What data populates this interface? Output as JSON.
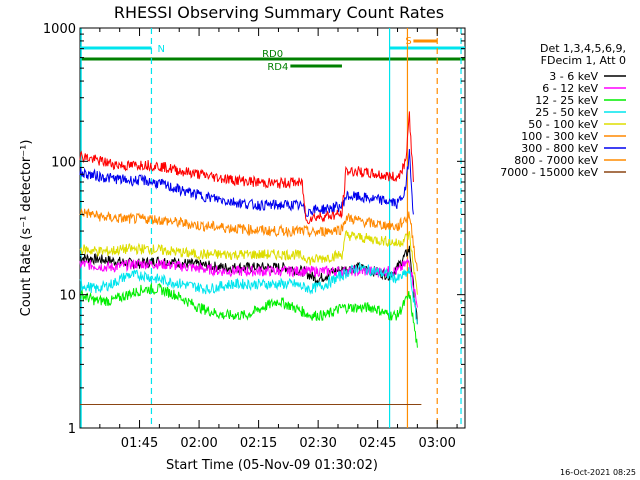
{
  "chart_data": {
    "type": "line",
    "title": "RHESSI Observing Summary Count Rates",
    "xlabel": "Start Time (05-Nov-09 01:30:02)",
    "ylabel": "Count Rate (s⁻¹ detector⁻¹)",
    "footer": "16-Oct-2021 08:25",
    "y_scale": "log",
    "ylim": [
      1,
      1000
    ],
    "y_ticks": [
      {
        "value": 1,
        "label": "1"
      },
      {
        "value": 10,
        "label": "10"
      },
      {
        "value": 100,
        "label": "100"
      },
      {
        "value": 1000,
        "label": "1000"
      }
    ],
    "xlim_minutes": [
      0,
      97
    ],
    "x_ticks": [
      {
        "minute": 15,
        "label": "01:45"
      },
      {
        "minute": 30,
        "label": "02:00"
      },
      {
        "minute": 45,
        "label": "02:15"
      },
      {
        "minute": 60,
        "label": "02:30"
      },
      {
        "minute": 75,
        "label": "02:45"
      },
      {
        "minute": 90,
        "label": "03:00"
      }
    ],
    "legend_header": [
      "Det 1,3,4,5,6,9,",
      "FDecim 1, Att 0"
    ],
    "legend_position": "right",
    "grid": false,
    "series": [
      {
        "name": "3 - 6 keV",
        "color": "#000000",
        "points": [
          [
            0,
            19
          ],
          [
            8,
            18
          ],
          [
            14,
            17
          ],
          [
            20,
            18
          ],
          [
            28,
            17
          ],
          [
            36,
            16
          ],
          [
            44,
            16
          ],
          [
            52,
            16
          ],
          [
            56,
            15
          ],
          [
            60,
            13
          ],
          [
            64,
            15
          ],
          [
            70,
            16
          ],
          [
            74,
            15
          ],
          [
            78,
            14
          ],
          [
            80,
            16
          ],
          [
            83,
            22
          ],
          [
            85,
            6
          ]
        ]
      },
      {
        "name": "6 - 12 keV",
        "color": "#ff00ff",
        "points": [
          [
            0,
            17
          ],
          [
            8,
            16
          ],
          [
            14,
            17
          ],
          [
            20,
            17
          ],
          [
            28,
            16
          ],
          [
            36,
            15
          ],
          [
            44,
            15
          ],
          [
            52,
            15
          ],
          [
            56,
            15
          ],
          [
            60,
            15
          ],
          [
            64,
            15
          ],
          [
            70,
            15
          ],
          [
            74,
            15
          ],
          [
            78,
            15
          ],
          [
            80,
            15
          ],
          [
            83,
            18
          ],
          [
            85,
            8
          ]
        ]
      },
      {
        "name": "12 - 25 keV",
        "color": "#00ee00",
        "points": [
          [
            0,
            10
          ],
          [
            4,
            9
          ],
          [
            8,
            9
          ],
          [
            12,
            10
          ],
          [
            16,
            11
          ],
          [
            20,
            11
          ],
          [
            24,
            10
          ],
          [
            30,
            8
          ],
          [
            36,
            7
          ],
          [
            42,
            7
          ],
          [
            46,
            8
          ],
          [
            50,
            9
          ],
          [
            54,
            8
          ],
          [
            58,
            7
          ],
          [
            62,
            7
          ],
          [
            66,
            8
          ],
          [
            70,
            8
          ],
          [
            74,
            8
          ],
          [
            78,
            7
          ],
          [
            80,
            7
          ],
          [
            83,
            10
          ],
          [
            85,
            4
          ]
        ]
      },
      {
        "name": "25 - 50 keV",
        "color": "#00e5ee",
        "points": [
          [
            0,
            12
          ],
          [
            4,
            11
          ],
          [
            8,
            12
          ],
          [
            12,
            14
          ],
          [
            16,
            14
          ],
          [
            20,
            13
          ],
          [
            26,
            12
          ],
          [
            32,
            11
          ],
          [
            38,
            12
          ],
          [
            44,
            12
          ],
          [
            50,
            12
          ],
          [
            54,
            12
          ],
          [
            58,
            11
          ],
          [
            62,
            12
          ],
          [
            66,
            14
          ],
          [
            70,
            16
          ],
          [
            74,
            15
          ],
          [
            78,
            14
          ],
          [
            80,
            13
          ],
          [
            83,
            15
          ],
          [
            85,
            6
          ]
        ]
      },
      {
        "name": "50 - 100 keV",
        "color": "#dddd00",
        "points": [
          [
            0,
            22
          ],
          [
            6,
            21
          ],
          [
            12,
            22
          ],
          [
            18,
            22
          ],
          [
            24,
            21
          ],
          [
            30,
            20
          ],
          [
            36,
            20
          ],
          [
            42,
            20
          ],
          [
            48,
            20
          ],
          [
            54,
            20
          ],
          [
            57,
            19
          ],
          [
            58,
            18
          ],
          [
            62,
            19
          ],
          [
            66,
            20
          ],
          [
            67,
            28
          ],
          [
            70,
            27
          ],
          [
            74,
            26
          ],
          [
            78,
            25
          ],
          [
            80,
            24
          ],
          [
            83,
            28
          ],
          [
            85,
            10
          ]
        ]
      },
      {
        "name": "100 - 300 keV",
        "color": "#ff8800",
        "points": [
          [
            0,
            42
          ],
          [
            6,
            38
          ],
          [
            12,
            37
          ],
          [
            18,
            37
          ],
          [
            24,
            35
          ],
          [
            30,
            33
          ],
          [
            36,
            32
          ],
          [
            42,
            31
          ],
          [
            48,
            30
          ],
          [
            54,
            30
          ],
          [
            57,
            30
          ],
          [
            58,
            29
          ],
          [
            62,
            30
          ],
          [
            66,
            31
          ],
          [
            67,
            38
          ],
          [
            70,
            36
          ],
          [
            74,
            34
          ],
          [
            78,
            33
          ],
          [
            80,
            32
          ],
          [
            83,
            40
          ],
          [
            85,
            15
          ]
        ]
      },
      {
        "name": "300 - 800 keV",
        "color": "#0000ee",
        "points": [
          [
            0,
            82
          ],
          [
            6,
            76
          ],
          [
            12,
            72
          ],
          [
            16,
            72
          ],
          [
            20,
            68
          ],
          [
            26,
            60
          ],
          [
            32,
            54
          ],
          [
            38,
            50
          ],
          [
            44,
            47
          ],
          [
            50,
            47
          ],
          [
            54,
            47
          ],
          [
            56,
            46
          ],
          [
            57,
            41
          ],
          [
            58,
            43
          ],
          [
            62,
            44
          ],
          [
            66,
            46
          ],
          [
            67,
            55
          ],
          [
            70,
            54
          ],
          [
            74,
            52
          ],
          [
            78,
            50
          ],
          [
            80,
            48
          ],
          [
            82,
            60
          ],
          [
            83,
            120
          ],
          [
            84,
            40
          ]
        ]
      },
      {
        "name": "800 - 7000 keV",
        "color": "#ff8c00",
        "points": [
          [
            0,
            1.5
          ],
          [
            86,
            1.5
          ]
        ]
      },
      {
        "name": "7000 - 15000 keV",
        "color": "#8b4513",
        "points": [
          [
            0,
            1.5
          ],
          [
            86,
            1.5
          ]
        ]
      },
      {
        "name": "",
        "color": "#ff0000",
        "points": [
          [
            0,
            110
          ],
          [
            4,
            102
          ],
          [
            8,
            96
          ],
          [
            12,
            92
          ],
          [
            16,
            95
          ],
          [
            20,
            92
          ],
          [
            26,
            84
          ],
          [
            32,
            78
          ],
          [
            38,
            73
          ],
          [
            44,
            70
          ],
          [
            50,
            68
          ],
          [
            54,
            70
          ],
          [
            56,
            68
          ],
          [
            57,
            35
          ],
          [
            58,
            38
          ],
          [
            62,
            39
          ],
          [
            66,
            40
          ],
          [
            67,
            84
          ],
          [
            70,
            84
          ],
          [
            74,
            80
          ],
          [
            78,
            77
          ],
          [
            80,
            75
          ],
          [
            82,
            100
          ],
          [
            83,
            220
          ],
          [
            84,
            70
          ]
        ]
      }
    ],
    "state_bars": [
      {
        "label": "N",
        "color": "#00e5ee",
        "start": 0,
        "end": 18,
        "row": "top"
      },
      {
        "label": "",
        "color": "#00e5ee",
        "start": 78,
        "end": 97,
        "row": "top"
      },
      {
        "label": "S",
        "color": "#ff8c00",
        "start": 84,
        "end": 90,
        "row": "s"
      },
      {
        "label": "RD0",
        "color": "#008000",
        "start": 0,
        "end": 97,
        "row": "rd0"
      },
      {
        "label": "RD4",
        "color": "#008000",
        "start": 53,
        "end": 66,
        "row": "rd4"
      }
    ],
    "vertical_markers": [
      {
        "minute": 18,
        "color": "#00e5ee",
        "style": "dashed"
      },
      {
        "minute": 78,
        "color": "#00e5ee",
        "style": "solid"
      },
      {
        "minute": 82.5,
        "color": "#ff8c00",
        "style": "solid"
      },
      {
        "minute": 90,
        "color": "#ff8c00",
        "style": "dashed"
      },
      {
        "minute": 96,
        "color": "#00e5ee",
        "style": "dashed"
      }
    ]
  }
}
